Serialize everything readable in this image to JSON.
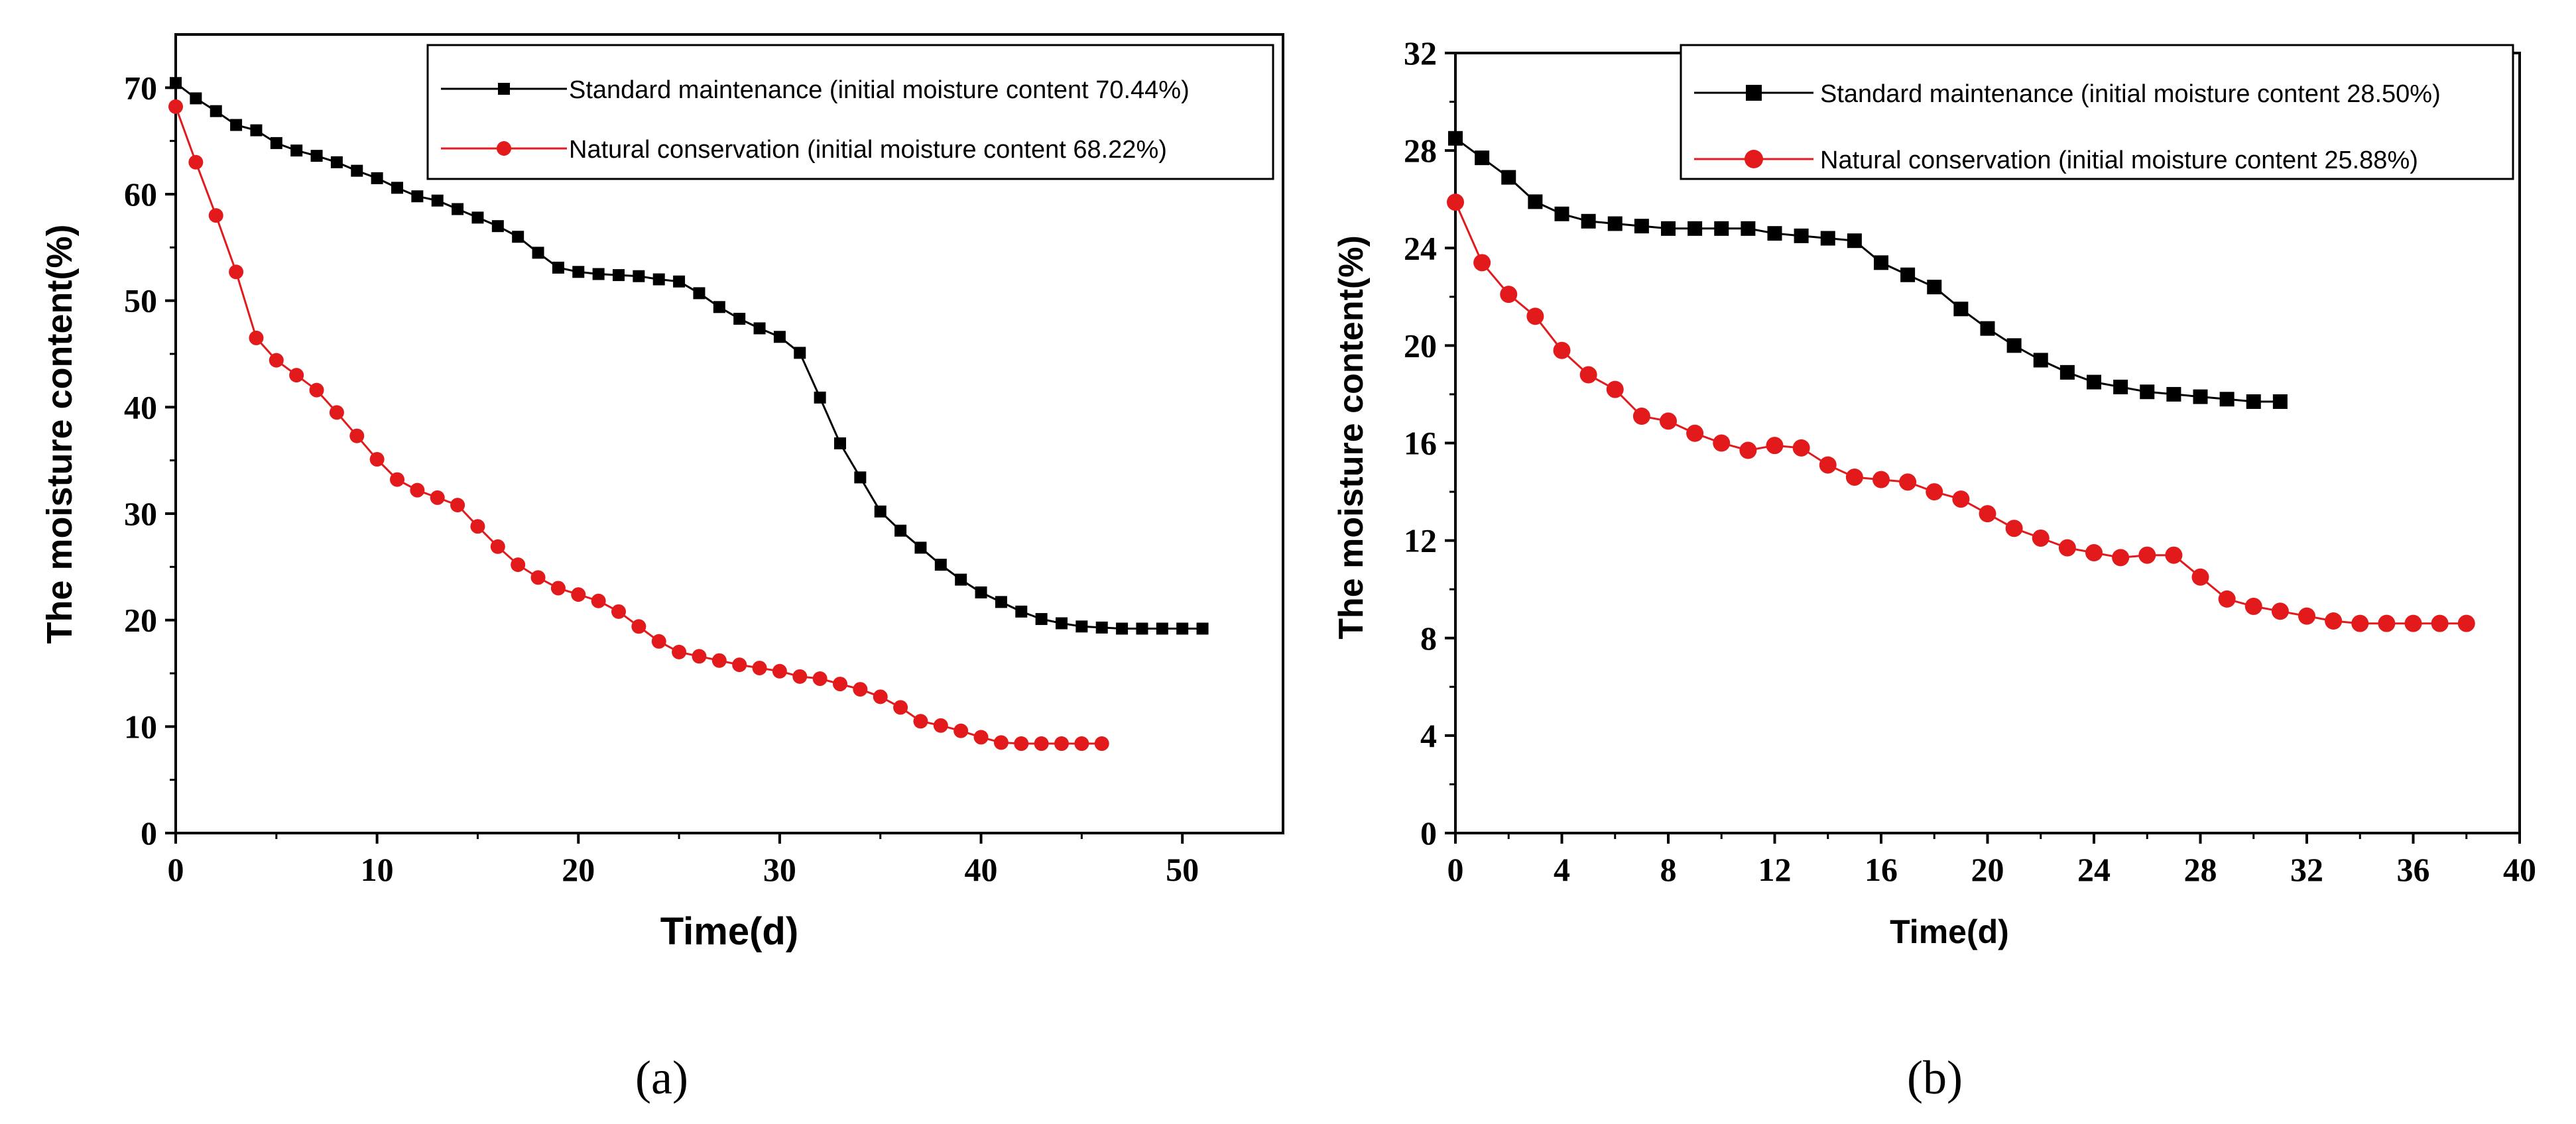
{
  "chart_data": [
    {
      "type": "line",
      "panel": "a",
      "caption": "(a)",
      "xlabel": "Time(d)",
      "ylabel": "The moisture content(%)",
      "xlim": [
        0,
        55
      ],
      "ylim": [
        0,
        75
      ],
      "xticks": [
        0,
        10,
        20,
        30,
        40,
        50
      ],
      "yticks": [
        0,
        10,
        20,
        30,
        40,
        50,
        60,
        70
      ],
      "legend_position": "top-right",
      "series": [
        {
          "name": "Standard maintenance (initial moisture content 70.44%)",
          "color": "#000000",
          "marker": "square",
          "x": [
            0,
            1,
            2,
            3,
            4,
            5,
            6,
            7,
            8,
            9,
            10,
            11,
            12,
            13,
            14,
            15,
            16,
            17,
            18,
            19,
            20,
            21,
            22,
            23,
            24,
            25,
            26,
            27,
            28,
            29,
            30,
            31,
            32,
            33,
            34,
            35,
            36,
            37,
            38,
            39,
            40,
            41,
            42,
            43,
            44,
            45,
            46,
            47,
            48,
            49,
            50,
            51
          ],
          "values": [
            70.44,
            69.0,
            67.8,
            66.5,
            66.0,
            64.8,
            64.1,
            63.6,
            63.0,
            62.2,
            61.5,
            60.6,
            59.8,
            59.4,
            58.6,
            57.8,
            57.0,
            56.0,
            54.5,
            53.1,
            52.7,
            52.5,
            52.4,
            52.3,
            52.0,
            51.8,
            50.7,
            49.4,
            48.3,
            47.4,
            46.6,
            45.1,
            40.9,
            36.6,
            33.4,
            30.2,
            28.4,
            26.8,
            25.2,
            23.8,
            22.6,
            21.7,
            20.8,
            20.1,
            19.7,
            19.4,
            19.3,
            19.2,
            19.2,
            19.2,
            19.2,
            19.2
          ]
        },
        {
          "name": "Natural conservation (initial moisture content 68.22%)",
          "color": "#e31a1c",
          "marker": "circle",
          "x": [
            0,
            1,
            2,
            3,
            4,
            5,
            6,
            7,
            8,
            9,
            10,
            11,
            12,
            13,
            14,
            15,
            16,
            17,
            18,
            19,
            20,
            21,
            22,
            23,
            24,
            25,
            26,
            27,
            28,
            29,
            30,
            31,
            32,
            33,
            34,
            35,
            36,
            37,
            38,
            39,
            40,
            41,
            42,
            43,
            44,
            45,
            46
          ],
          "values": [
            68.22,
            63.0,
            58.0,
            52.7,
            46.5,
            44.4,
            43.0,
            41.6,
            39.5,
            37.3,
            35.1,
            33.2,
            32.2,
            31.5,
            30.8,
            28.8,
            26.9,
            25.2,
            24.0,
            23.0,
            22.4,
            21.8,
            20.8,
            19.4,
            18.0,
            17.0,
            16.6,
            16.2,
            15.8,
            15.5,
            15.2,
            14.7,
            14.5,
            14.0,
            13.5,
            12.8,
            11.8,
            10.5,
            10.1,
            9.6,
            9.0,
            8.5,
            8.4,
            8.4,
            8.4,
            8.4,
            8.4
          ]
        }
      ]
    },
    {
      "type": "line",
      "panel": "b",
      "caption": "(b)",
      "xlabel": "Time(d)",
      "ylabel": "The moisture content(%)",
      "xlim": [
        0,
        40
      ],
      "ylim": [
        0,
        32
      ],
      "xticks": [
        0,
        4,
        8,
        12,
        16,
        20,
        24,
        28,
        32,
        36,
        40
      ],
      "yticks": [
        0,
        4,
        8,
        12,
        16,
        20,
        24,
        28,
        32
      ],
      "legend_position": "top-right",
      "series": [
        {
          "name": "Standard maintenance (initial moisture content 28.50%)",
          "color": "#000000",
          "marker": "square",
          "x": [
            0,
            1,
            2,
            3,
            4,
            5,
            6,
            7,
            8,
            9,
            10,
            11,
            12,
            13,
            14,
            15,
            16,
            17,
            18,
            19,
            20,
            21,
            22,
            23,
            24,
            25,
            26,
            27,
            28,
            29,
            30,
            31
          ],
          "values": [
            28.5,
            27.7,
            26.9,
            25.9,
            25.4,
            25.1,
            25.0,
            24.9,
            24.8,
            24.8,
            24.8,
            24.8,
            24.6,
            24.5,
            24.4,
            24.3,
            23.4,
            22.9,
            22.4,
            21.5,
            20.7,
            20.0,
            19.4,
            18.9,
            18.5,
            18.3,
            18.1,
            18.0,
            17.9,
            17.8,
            17.7,
            17.7
          ]
        },
        {
          "name": "Natural conservation (initial moisture content 25.88%)",
          "color": "#e31a1c",
          "marker": "circle",
          "x": [
            0,
            1,
            2,
            3,
            4,
            5,
            6,
            7,
            8,
            9,
            10,
            11,
            12,
            13,
            14,
            15,
            16,
            17,
            18,
            19,
            20,
            21,
            22,
            23,
            24,
            25,
            26,
            27,
            28,
            29,
            30,
            31,
            32,
            33,
            34,
            35,
            36,
            37,
            38
          ],
          "values": [
            25.88,
            23.4,
            22.1,
            21.2,
            19.8,
            18.8,
            18.2,
            17.1,
            16.9,
            16.4,
            16.0,
            15.7,
            15.9,
            15.8,
            15.1,
            14.6,
            14.5,
            14.4,
            14.0,
            13.7,
            13.1,
            12.5,
            12.1,
            11.7,
            11.5,
            11.3,
            11.4,
            11.4,
            10.5,
            9.6,
            9.3,
            9.1,
            8.9,
            8.7,
            8.6,
            8.6,
            8.6,
            8.6,
            8.6
          ]
        }
      ]
    }
  ]
}
